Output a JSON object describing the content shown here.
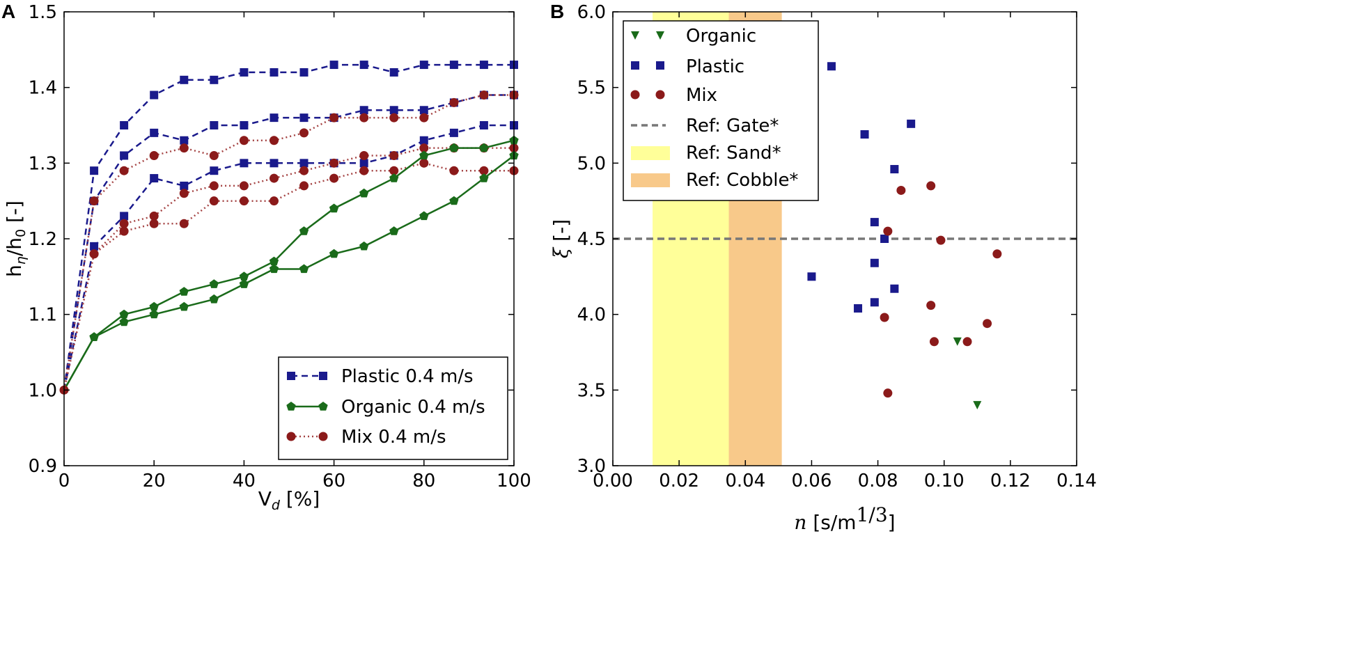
{
  "chart_data": [
    {
      "panel": "A",
      "type": "line",
      "xlabel_main": "V",
      "xlabel_sub": "d",
      "xlabel_unit": " [%]",
      "ylabel_main": "h",
      "ylabel_sub1": "η",
      "ylabel_mid": "/h",
      "ylabel_sub2": "0",
      "ylabel_unit": " [-]",
      "xlim": [
        0,
        100
      ],
      "ylim": [
        0.9,
        1.5
      ],
      "xticks": [
        "0",
        "20",
        "40",
        "60",
        "80",
        "100"
      ],
      "yticks": [
        "0.9",
        "1.0",
        "1.1",
        "1.2",
        "1.3",
        "1.4",
        "1.5"
      ],
      "legend_position": "bottom-right",
      "legend": [
        "Plastic 0.4 m/s",
        "Organic 0.4 m/s",
        "Mix 0.4 m/s"
      ],
      "x": [
        0,
        6.67,
        13.33,
        20,
        26.67,
        33.33,
        40,
        46.67,
        53.33,
        60,
        66.67,
        73.33,
        80,
        86.67,
        93.33,
        100
      ],
      "series": [
        {
          "name": "Plastic 0.4 m/s",
          "group": "Plastic",
          "values": [
            1.0,
            1.29,
            1.35,
            1.39,
            1.41,
            1.41,
            1.42,
            1.42,
            1.42,
            1.43,
            1.43,
            1.42,
            1.43,
            1.43,
            1.43,
            1.43
          ]
        },
        {
          "name": "Plastic 0.4 m/s",
          "group": "Plastic",
          "values": [
            1.0,
            1.25,
            1.31,
            1.34,
            1.33,
            1.35,
            1.35,
            1.36,
            1.36,
            1.36,
            1.37,
            1.37,
            1.37,
            1.38,
            1.39,
            1.39
          ]
        },
        {
          "name": "Plastic 0.4 m/s",
          "group": "Plastic",
          "values": [
            1.0,
            1.19,
            1.23,
            1.28,
            1.27,
            1.29,
            1.3,
            1.3,
            1.3,
            1.3,
            1.3,
            1.31,
            1.33,
            1.34,
            1.35,
            1.35
          ]
        },
        {
          "name": "Mix 0.4 m/s",
          "group": "Mix",
          "values": [
            1.0,
            1.25,
            1.29,
            1.31,
            1.32,
            1.31,
            1.33,
            1.33,
            1.34,
            1.36,
            1.36,
            1.36,
            1.36,
            1.38,
            1.39,
            1.39
          ]
        },
        {
          "name": "Mix 0.4 m/s",
          "group": "Mix",
          "values": [
            1.0,
            1.18,
            1.22,
            1.23,
            1.26,
            1.27,
            1.27,
            1.28,
            1.29,
            1.3,
            1.31,
            1.31,
            1.32,
            1.32,
            1.32,
            1.32
          ]
        },
        {
          "name": "Mix 0.4 m/s",
          "group": "Mix",
          "values": [
            1.0,
            1.18,
            1.21,
            1.22,
            1.22,
            1.25,
            1.25,
            1.25,
            1.27,
            1.28,
            1.29,
            1.29,
            1.3,
            1.29,
            1.29,
            1.29
          ]
        },
        {
          "name": "Organic 0.4 m/s",
          "group": "Organic",
          "values": [
            1.0,
            1.07,
            1.1,
            1.11,
            1.13,
            1.14,
            1.15,
            1.17,
            1.21,
            1.24,
            1.26,
            1.28,
            1.31,
            1.32,
            1.32,
            1.33
          ]
        },
        {
          "name": "Organic 0.4 m/s",
          "group": "Organic",
          "values": [
            1.0,
            1.07,
            1.09,
            1.1,
            1.11,
            1.12,
            1.14,
            1.16,
            1.16,
            1.18,
            1.19,
            1.21,
            1.23,
            1.25,
            1.28,
            1.31
          ]
        }
      ],
      "colors": {
        "Plastic": "#1a1a8c",
        "Organic": "#1a6b1a",
        "Mix": "#8b1a1a"
      }
    },
    {
      "panel": "B",
      "type": "scatter",
      "xlabel_main": "n",
      "xlabel_unit": " [s/m",
      "xlabel_exp": "1/3",
      "xlabel_close": "]",
      "ylabel_main": "ξ",
      "ylabel_unit": " [-]",
      "xlim": [
        0.0,
        0.14
      ],
      "ylim": [
        3.0,
        6.0
      ],
      "xticks": [
        "0.00",
        "0.02",
        "0.04",
        "0.06",
        "0.08",
        "0.10",
        "0.12",
        "0.14"
      ],
      "yticks": [
        "3.0",
        "3.5",
        "4.0",
        "4.5",
        "5.0",
        "5.5",
        "6.0"
      ],
      "legend_position": "top-left",
      "legend": [
        "Organic",
        "Plastic",
        "Mix",
        "Ref: Gate*",
        "Ref: Sand*",
        "Ref: Cobble*"
      ],
      "organic": [
        [
          0.104,
          3.82
        ],
        [
          0.11,
          3.4
        ]
      ],
      "plastic": [
        [
          0.066,
          5.64
        ],
        [
          0.076,
          5.19
        ],
        [
          0.09,
          5.26
        ],
        [
          0.085,
          4.96
        ],
        [
          0.079,
          4.61
        ],
        [
          0.082,
          4.5
        ],
        [
          0.079,
          4.34
        ],
        [
          0.06,
          4.25
        ],
        [
          0.085,
          4.17
        ],
        [
          0.079,
          4.08
        ],
        [
          0.074,
          4.04
        ]
      ],
      "mix": [
        [
          0.087,
          4.82
        ],
        [
          0.096,
          4.85
        ],
        [
          0.083,
          4.55
        ],
        [
          0.099,
          4.49
        ],
        [
          0.116,
          4.4
        ],
        [
          0.096,
          4.06
        ],
        [
          0.082,
          3.98
        ],
        [
          0.113,
          3.94
        ],
        [
          0.097,
          3.82
        ],
        [
          0.107,
          3.82
        ],
        [
          0.083,
          3.48
        ]
      ],
      "ref_gate_y": 4.5,
      "ref_sand_x": [
        0.012,
        0.035
      ],
      "ref_cobble_x": [
        0.035,
        0.051
      ],
      "colors": {
        "Organic": "#1a6b1a",
        "Plastic": "#1a1a8c",
        "Mix": "#8b1a1a",
        "Gate": "#777777",
        "Sand": "#ffff99",
        "Cobble": "#f8c98a"
      }
    }
  ]
}
